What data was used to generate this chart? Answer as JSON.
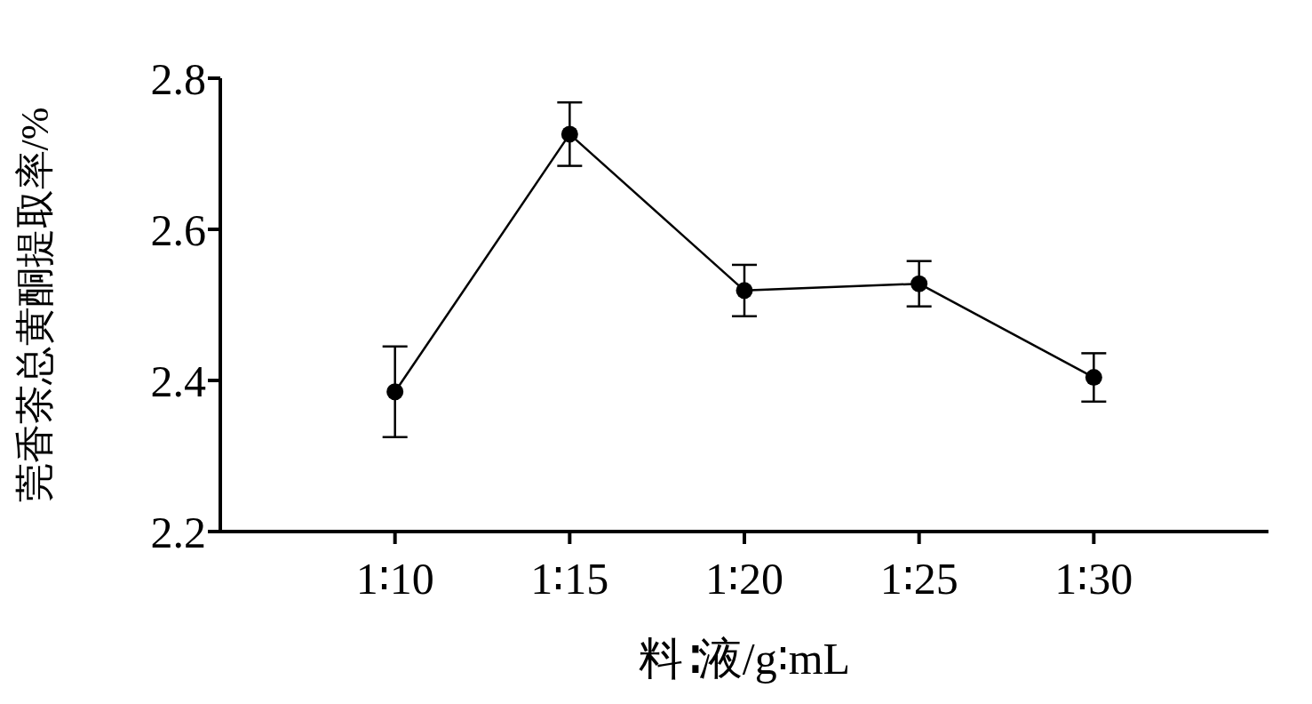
{
  "chart_data": {
    "type": "line",
    "xlabel": "料∶液/g∶mL",
    "ylabel": "莞香茶总黄酮提取率/%",
    "categories": [
      "1∶10",
      "1∶15",
      "1∶20",
      "1∶25",
      "1∶30"
    ],
    "series": [
      {
        "color": "#000000",
        "values": [
          2.385,
          2.726,
          2.519,
          2.528,
          2.404
        ],
        "errors": [
          0.06,
          0.042,
          0.034,
          0.03,
          0.032
        ]
      }
    ],
    "ylim": [
      2.2,
      2.8
    ],
    "yticks": [
      2.2,
      2.4,
      2.6,
      2.8
    ],
    "marker": "circle",
    "line_style": "solid"
  }
}
